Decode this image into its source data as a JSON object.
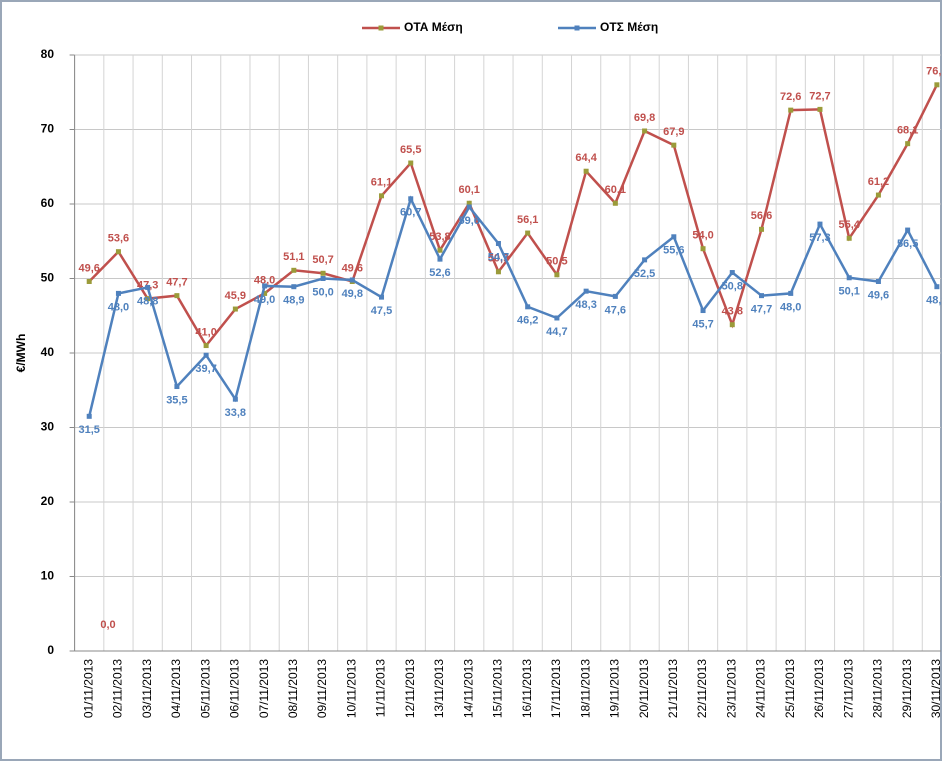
{
  "chart_data": {
    "type": "line",
    "y_label": "€/MWh",
    "categories": [
      "01/11/2013",
      "02/11/2013",
      "03/11/2013",
      "04/11/2013",
      "05/11/2013",
      "06/11/2013",
      "07/11/2013",
      "08/11/2013",
      "09/11/2013",
      "10/11/2013",
      "11/11/2013",
      "12/11/2013",
      "13/11/2013",
      "14/11/2013",
      "15/11/2013",
      "16/11/2013",
      "17/11/2013",
      "18/11/2013",
      "19/11/2013",
      "20/11/2013",
      "21/11/2013",
      "22/11/2013",
      "23/11/2013",
      "24/11/2013",
      "25/11/2013",
      "26/11/2013",
      "27/11/2013",
      "28/11/2013",
      "29/11/2013",
      "30/11/2013"
    ],
    "series": [
      {
        "name": "ΟΤΑ Μέση",
        "color": "#c0504d",
        "marker_color": "#9b9b3a",
        "values": [
          49.6,
          53.6,
          47.3,
          47.7,
          41.0,
          45.9,
          48.0,
          51.1,
          50.7,
          49.6,
          61.1,
          65.5,
          53.8,
          60.1,
          50.9,
          56.1,
          50.5,
          64.4,
          60.1,
          69.8,
          67.9,
          54.0,
          43.8,
          56.6,
          72.6,
          72.7,
          55.4,
          61.2,
          68.1,
          76.0
        ],
        "value_labels": [
          "49,6",
          "53,6",
          "47,3",
          "47,7",
          "41,0",
          "45,9",
          "48,0",
          "51,1",
          "50,7",
          "49,6",
          "61,1",
          "65,5",
          "53,8",
          "60,1",
          "50,9",
          "56,1",
          "50,5",
          "64,4",
          "60,1",
          "69,8",
          "67,9",
          "54,0",
          "43,8",
          "56,6",
          "72,6",
          "72,7",
          "55,4",
          "61,2",
          "68,1",
          "76,0"
        ]
      },
      {
        "name": "ΟΤΣ Μέση",
        "color": "#4f81bd",
        "marker_color": "#4f81bd",
        "values": [
          31.5,
          48.0,
          48.8,
          35.5,
          39.7,
          33.8,
          49.0,
          48.9,
          50.0,
          49.8,
          47.5,
          60.7,
          52.6,
          59.6,
          54.7,
          46.2,
          44.7,
          48.3,
          47.6,
          52.5,
          55.6,
          45.7,
          50.8,
          47.7,
          48.0,
          57.3,
          50.1,
          49.6,
          56.5,
          48.9
        ],
        "value_labels": [
          "31,5",
          "48,0",
          "48,8",
          "35,5",
          "39,7",
          "33,8",
          "49,0",
          "48,9",
          "50,0",
          "49,8",
          "47,5",
          "60,7",
          "52,6",
          "59,6",
          "54,7",
          "46,2",
          "44,7",
          "48,3",
          "47,6",
          "52,5",
          "55,6",
          "45,7",
          "50,8",
          "47,7",
          "48,0",
          "57,3",
          "50,1",
          "49,6",
          "56,5",
          "48,9"
        ]
      }
    ],
    "annotations": [
      "0,0"
    ],
    "ylim": [
      0,
      80
    ],
    "yticks": [
      0,
      10,
      20,
      30,
      40,
      50,
      60,
      70,
      80
    ],
    "grid": true,
    "legend": "top"
  }
}
